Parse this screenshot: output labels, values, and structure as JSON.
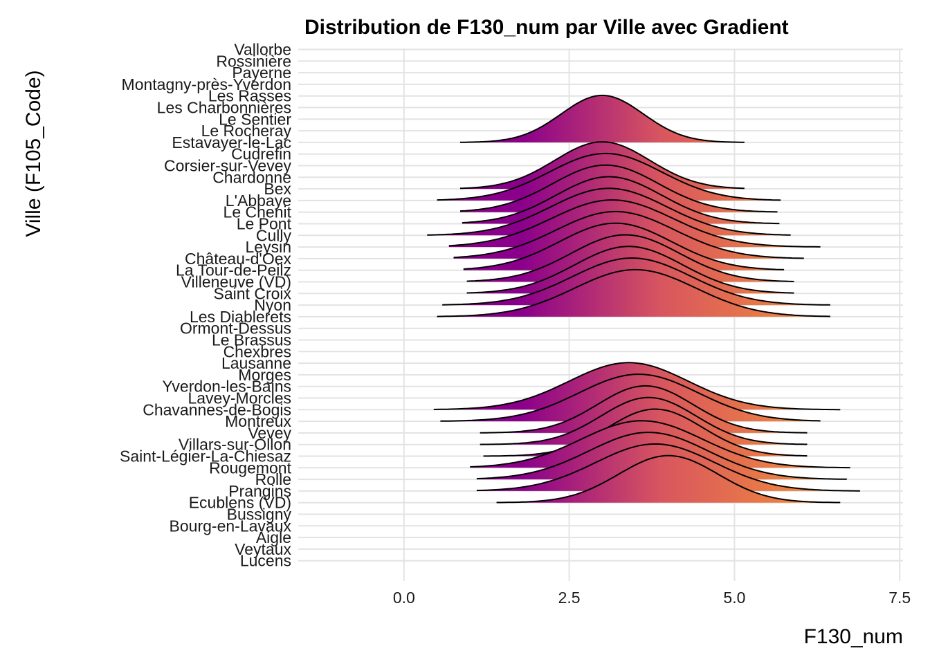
{
  "chart_data": {
    "type": "ridgeline",
    "title": "Distribution de F130_num par Ville avec Gradient",
    "xlabel": "F130_num",
    "ylabel": "Ville (F105_Code)",
    "x_ticks": [
      0.0,
      2.5,
      5.0,
      7.5
    ],
    "x_tick_labels": [
      "0.0",
      "2.5",
      "5.0",
      "7.5"
    ],
    "xlim": [
      -1.6,
      7.55
    ],
    "grid": true,
    "fill_gradient": {
      "low": "#8b008b",
      "mid": "#d8565f",
      "high": "#ffa827"
    },
    "cities": [
      "Vallorbe",
      "Rossinière",
      "Payerne",
      "Montagny-près-Yverdon",
      "Les Rasses",
      "Les Charbonnières",
      "Le Sentier",
      "Le Rocheray",
      "Estavayer-le-Lac",
      "Cudrefin",
      "Corsier-sur-Vevey",
      "Chardonne",
      "Bex",
      "L'Abbaye",
      "Le Chenit",
      "Le Pont",
      "Cully",
      "Leysin",
      "Château-d'Oex",
      "La Tour-de-Peilz",
      "Villeneuve (VD)",
      "Saint Croix",
      "Nyon",
      "Les Diablerets",
      "Ormont-Dessus",
      "Le Brassus",
      "Chexbres",
      "Lausanne",
      "Morges",
      "Yverdon-les-Bains",
      "Lavey-Morcles",
      "Chavannes-de-Bogis",
      "Montreux",
      "Vevey",
      "Villars-sur-Ollon",
      "Saint-Légier-La-Chiesaz",
      "Rougemont",
      "Rolle",
      "Prangins",
      "Ecublens (VD)",
      "Bussigny",
      "Bourg-en-Lavaux",
      "Aigle",
      "Veytaux",
      "Lucens"
    ],
    "densities": [
      {
        "city": "Estavayer-le-Lac",
        "mean": 3.0,
        "sd": 0.62,
        "min": 0.85,
        "max": 5.15
      },
      {
        "city": "Bex",
        "mean": 3.0,
        "sd": 0.72,
        "min": 0.85,
        "max": 5.15
      },
      {
        "city": "L'Abbaye",
        "mean": 3.05,
        "sd": 0.85,
        "min": 0.5,
        "max": 5.7
      },
      {
        "city": "Le Chenit",
        "mean": 3.05,
        "sd": 0.8,
        "min": 0.85,
        "max": 5.65
      },
      {
        "city": "Le Pont",
        "mean": 3.1,
        "sd": 0.8,
        "min": 0.88,
        "max": 5.68
      },
      {
        "city": "Cully",
        "mean": 3.1,
        "sd": 0.88,
        "min": 0.35,
        "max": 5.85
      },
      {
        "city": "Leysin",
        "mean": 3.15,
        "sd": 0.92,
        "min": 0.68,
        "max": 6.3
      },
      {
        "city": "Château-d'Oex",
        "mean": 3.2,
        "sd": 0.9,
        "min": 0.75,
        "max": 6.05
      },
      {
        "city": "La Tour-de-Peilz",
        "mean": 3.2,
        "sd": 0.85,
        "min": 0.9,
        "max": 5.75
      },
      {
        "city": "Villeneuve (VD)",
        "mean": 3.35,
        "sd": 0.82,
        "min": 0.95,
        "max": 5.9
      },
      {
        "city": "Saint Croix",
        "mean": 3.4,
        "sd": 0.82,
        "min": 0.95,
        "max": 5.9
      },
      {
        "city": "Nyon",
        "mean": 3.45,
        "sd": 0.9,
        "min": 0.58,
        "max": 6.45
      },
      {
        "city": "Les Diablerets",
        "mean": 3.5,
        "sd": 0.92,
        "min": 0.5,
        "max": 6.45
      },
      {
        "city": "Chavannes-de-Bogis",
        "mean": 3.4,
        "sd": 0.9,
        "min": 0.45,
        "max": 6.6
      },
      {
        "city": "Montreux",
        "mean": 3.55,
        "sd": 0.9,
        "min": 0.55,
        "max": 6.3
      },
      {
        "city": "Vevey",
        "mean": 3.65,
        "sd": 0.72,
        "min": 1.15,
        "max": 6.1
      },
      {
        "city": "Villars-sur-Ollon",
        "mean": 3.7,
        "sd": 0.72,
        "min": 1.15,
        "max": 6.1
      },
      {
        "city": "Saint-Légier-La-Chiesaz",
        "mean": 3.8,
        "sd": 0.72,
        "min": 1.2,
        "max": 6.1
      },
      {
        "city": "Rougemont",
        "mean": 3.6,
        "sd": 0.92,
        "min": 1.0,
        "max": 6.75
      },
      {
        "city": "Rolle",
        "mean": 3.7,
        "sd": 0.9,
        "min": 1.1,
        "max": 6.7
      },
      {
        "city": "Prangins",
        "mean": 3.8,
        "sd": 0.9,
        "min": 1.1,
        "max": 6.9
      },
      {
        "city": "Ecublens (VD)",
        "mean": 4.0,
        "sd": 0.75,
        "min": 1.4,
        "max": 6.6
      }
    ]
  }
}
